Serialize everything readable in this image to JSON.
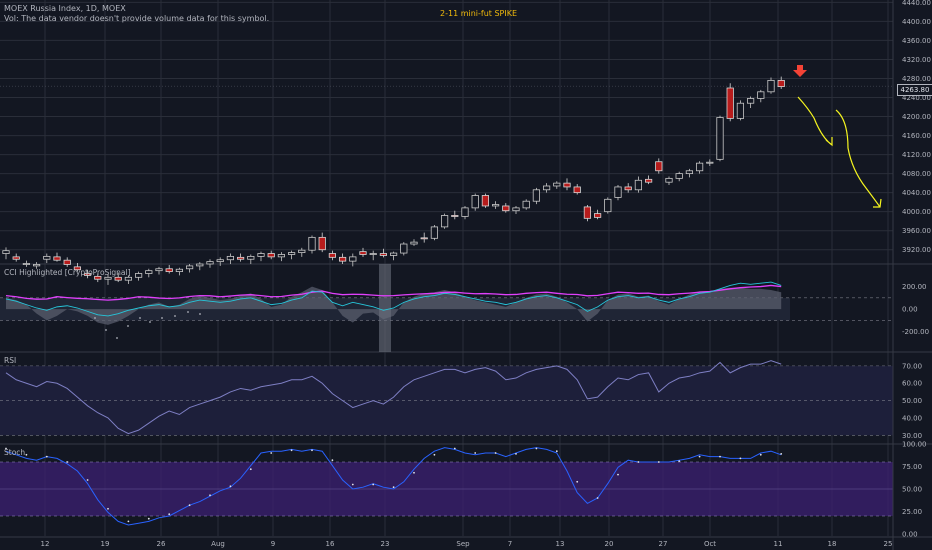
{
  "header": {
    "symbol_line": "MOEX Russia Index, 1D, MOEX",
    "volume_note": "Vol: The data vendor doesn't provide volume data for this symbol.",
    "annotation_title": "2-11 mini-fut SPIKE",
    "last_price": "4263.80"
  },
  "panels": {
    "cci": "CCI Highlighted [CryptoProSignal]",
    "rsi": "RSI",
    "stoch": "Stoch"
  },
  "colors": {
    "background": "#131722",
    "grid": "#2a2e39",
    "candle_up": "#131722",
    "candle_outline": "#c8c8c8",
    "candle_down": "#b71c1c",
    "annotation_arrow": "#f44336",
    "drawing_curve": "#f5f51f",
    "cci_line": "#e040fb",
    "cci_signal": "#26c6da",
    "rsi_line": "#7e7fc4",
    "stoch_k": "#2962ff",
    "stoch_fill": "#3a1f6e"
  },
  "chart_data": [
    {
      "type": "candlestick",
      "title": "MOEX Russia Index, 1D, MOEX",
      "x_ticks": [
        "12",
        "19",
        "26",
        "Aug",
        "9",
        "16",
        "23",
        "Sep",
        "7",
        "13",
        "20",
        "27",
        "Oct",
        "11",
        "18",
        "25"
      ],
      "y_ticks": [
        "3920.00",
        "3960.00",
        "4000.00",
        "4040.00",
        "4080.00",
        "4120.00",
        "4160.00",
        "4200.00",
        "4240.00",
        "4280.00",
        "4320.00",
        "4360.00",
        "4400.00",
        "4440.00"
      ],
      "ylim": [
        3890,
        4445
      ],
      "candles_ohlc": [
        [
          3912,
          3925,
          3900,
          3918
        ],
        [
          3905,
          3912,
          3895,
          3900
        ],
        [
          3890,
          3897,
          3884,
          3891
        ],
        [
          3886,
          3894,
          3880,
          3889
        ],
        [
          3900,
          3912,
          3892,
          3906
        ],
        [
          3905,
          3914,
          3895,
          3898
        ],
        [
          3898,
          3904,
          3884,
          3889
        ],
        [
          3884,
          3892,
          3874,
          3878
        ],
        [
          3870,
          3878,
          3860,
          3866
        ],
        [
          3864,
          3870,
          3852,
          3858
        ],
        [
          3858,
          3868,
          3846,
          3862
        ],
        [
          3862,
          3872,
          3852,
          3856
        ],
        [
          3856,
          3866,
          3848,
          3862
        ],
        [
          3862,
          3874,
          3855,
          3870
        ],
        [
          3870,
          3880,
          3862,
          3876
        ],
        [
          3876,
          3884,
          3868,
          3880
        ],
        [
          3880,
          3888,
          3870,
          3874
        ],
        [
          3874,
          3882,
          3866,
          3879
        ],
        [
          3880,
          3890,
          3872,
          3886
        ],
        [
          3886,
          3894,
          3877,
          3890
        ],
        [
          3890,
          3900,
          3882,
          3895
        ],
        [
          3895,
          3904,
          3886,
          3899
        ],
        [
          3899,
          3912,
          3890,
          3906
        ],
        [
          3904,
          3912,
          3895,
          3900
        ],
        [
          3900,
          3910,
          3890,
          3906
        ],
        [
          3906,
          3916,
          3896,
          3912
        ],
        [
          3912,
          3918,
          3900,
          3905
        ],
        [
          3905,
          3915,
          3896,
          3910
        ],
        [
          3910,
          3918,
          3900,
          3914
        ],
        [
          3914,
          3924,
          3905,
          3919
        ],
        [
          3919,
          3950,
          3912,
          3946
        ],
        [
          3946,
          3956,
          3915,
          3920
        ],
        [
          3912,
          3918,
          3898,
          3904
        ],
        [
          3904,
          3912,
          3890,
          3896
        ],
        [
          3896,
          3912,
          3885,
          3905
        ],
        [
          3916,
          3924,
          3905,
          3910
        ],
        [
          3910,
          3918,
          3898,
          3912
        ],
        [
          3912,
          3922,
          3904,
          3908
        ],
        [
          3908,
          3916,
          3898,
          3913
        ],
        [
          3913,
          3936,
          3908,
          3932
        ],
        [
          3932,
          3942,
          3928,
          3936
        ],
        [
          3945,
          3956,
          3935,
          3944
        ],
        [
          3944,
          3972,
          3940,
          3968
        ],
        [
          3968,
          3996,
          3964,
          3992
        ],
        [
          3992,
          4002,
          3984,
          3990
        ],
        [
          3990,
          4012,
          3984,
          4008
        ],
        [
          4008,
          4038,
          4002,
          4034
        ],
        [
          4034,
          4038,
          4008,
          4012
        ],
        [
          4012,
          4022,
          4006,
          4015
        ],
        [
          4012,
          4018,
          3998,
          4002
        ],
        [
          4002,
          4012,
          3995,
          4008
        ],
        [
          4008,
          4026,
          4004,
          4022
        ],
        [
          4022,
          4050,
          4016,
          4046
        ],
        [
          4046,
          4060,
          4040,
          4054
        ],
        [
          4054,
          4064,
          4048,
          4060
        ],
        [
          4060,
          4070,
          4045,
          4052
        ],
        [
          4052,
          4058,
          4036,
          4040
        ],
        [
          4010,
          4014,
          3980,
          3986
        ],
        [
          3996,
          4004,
          3984,
          3988
        ],
        [
          4000,
          4030,
          3996,
          4026
        ],
        [
          4030,
          4056,
          4024,
          4052
        ],
        [
          4052,
          4060,
          4040,
          4046
        ],
        [
          4046,
          4074,
          4040,
          4066
        ],
        [
          4068,
          4076,
          4058,
          4062
        ],
        [
          4105,
          4112,
          4080,
          4086
        ],
        [
          4062,
          4074,
          4056,
          4070
        ],
        [
          4070,
          4084,
          4064,
          4080
        ],
        [
          4080,
          4090,
          4072,
          4086
        ],
        [
          4086,
          4106,
          4080,
          4102
        ],
        [
          4102,
          4110,
          4096,
          4104
        ],
        [
          4110,
          4202,
          4106,
          4198
        ],
        [
          4260,
          4270,
          4190,
          4196
        ],
        [
          4196,
          4234,
          4192,
          4228
        ],
        [
          4228,
          4242,
          4218,
          4238
        ],
        [
          4238,
          4256,
          4230,
          4252
        ],
        [
          4252,
          4282,
          4248,
          4276
        ],
        [
          4276,
          4284,
          4258,
          4263
        ]
      ],
      "last_price": 4263.8
    },
    {
      "type": "line",
      "title": "CCI Highlighted [CryptoProSignal]",
      "y_ticks": [
        "200.00",
        "0.00",
        "-200.00"
      ],
      "ylim": [
        -380,
        400
      ],
      "reference_levels": [
        100,
        -100
      ],
      "series": [
        {
          "values": [
            120,
            110,
            95,
            88,
            90,
            110,
            102,
            96,
            92,
            85,
            80,
            86,
            95,
            110,
            106,
            98,
            94,
            100,
            112,
            120,
            118,
            110,
            116,
            124,
            128,
            120,
            110,
            112,
            124,
            132,
            150,
            160,
            140,
            128,
            132,
            130,
            124,
            118,
            120,
            126,
            132,
            136,
            140,
            148,
            150,
            142,
            136,
            138,
            134,
            128,
            130,
            140,
            146,
            150,
            140,
            132,
            130,
            118,
            122,
            136,
            150,
            146,
            140,
            142,
            130,
            128,
            136,
            142,
            150,
            156,
            168,
            180,
            190,
            196,
            200,
            210,
            200
          ]
        },
        {
          "values": [
            90,
            70,
            40,
            10,
            -10,
            20,
            30,
            10,
            -20,
            -50,
            -60,
            -40,
            -10,
            10,
            30,
            40,
            20,
            30,
            60,
            80,
            70,
            60,
            70,
            90,
            100,
            70,
            40,
            50,
            80,
            100,
            160,
            150,
            60,
            30,
            60,
            40,
            20,
            -10,
            10,
            60,
            90,
            110,
            120,
            140,
            130,
            110,
            90,
            70,
            60,
            40,
            60,
            90,
            110,
            120,
            100,
            70,
            40,
            -20,
            20,
            80,
            110,
            120,
            100,
            110,
            80,
            60,
            90,
            110,
            140,
            150,
            180,
            210,
            230,
            220,
            230,
            240,
            210
          ]
        }
      ],
      "histogram": [
        100,
        80,
        40,
        -40,
        -100,
        -60,
        0,
        -20,
        -60,
        -120,
        -140,
        -110,
        -60,
        0,
        40,
        60,
        20,
        40,
        90,
        120,
        100,
        80,
        90,
        120,
        140,
        90,
        20,
        40,
        110,
        150,
        200,
        170,
        60,
        -60,
        -120,
        -40,
        -30,
        -90,
        -60,
        60,
        110,
        140,
        150,
        170,
        150,
        110,
        80,
        60,
        40,
        20,
        60,
        100,
        130,
        140,
        110,
        60,
        0,
        -110,
        -40,
        80,
        130,
        140,
        110,
        120,
        70,
        40,
        90,
        130,
        160,
        160,
        180,
        190,
        190,
        180,
        180,
        170,
        150
      ]
    },
    {
      "type": "line",
      "title": "RSI",
      "y_ticks": [
        "70.00",
        "60.00",
        "50.00",
        "40.00",
        "30.00"
      ],
      "ylim": [
        25,
        78
      ],
      "reference_levels": [
        70,
        50,
        30
      ],
      "values": [
        66,
        62,
        60,
        58,
        61,
        60,
        57,
        52,
        47,
        43,
        40,
        34,
        31,
        33,
        37,
        41,
        44,
        42,
        46,
        48,
        50,
        52,
        55,
        57,
        56,
        58,
        59,
        60,
        62,
        62,
        64,
        60,
        54,
        50,
        46,
        48,
        50,
        48,
        52,
        58,
        62,
        64,
        66,
        68,
        68,
        66,
        68,
        69,
        67,
        62,
        63,
        66,
        68,
        69,
        70,
        68,
        62,
        51,
        52,
        58,
        63,
        62,
        65,
        66,
        55,
        60,
        63,
        64,
        66,
        67,
        72,
        66,
        69,
        71,
        71,
        73,
        71
      ]
    },
    {
      "type": "line",
      "title": "Stoch",
      "y_ticks": [
        "100.00",
        "75.00",
        "50.00",
        "25.00",
        "0.00"
      ],
      "ylim": [
        0,
        100
      ],
      "reference_levels": [
        80,
        20
      ],
      "series": [
        {
          "values": [
            92,
            88,
            84,
            82,
            86,
            84,
            78,
            70,
            56,
            38,
            24,
            14,
            10,
            12,
            14,
            18,
            20,
            26,
            32,
            36,
            42,
            48,
            52,
            62,
            76,
            90,
            92,
            92,
            94,
            92,
            94,
            92,
            76,
            60,
            50,
            52,
            56,
            52,
            50,
            58,
            72,
            84,
            92,
            96,
            94,
            90,
            88,
            90,
            90,
            86,
            90,
            94,
            96,
            94,
            90,
            70,
            46,
            34,
            40,
            56,
            74,
            82,
            80,
            80,
            80,
            80,
            82,
            84,
            88,
            86,
            86,
            84,
            84,
            84,
            90,
            92,
            88
          ]
        },
        {
          "values": [
            95,
            92,
            88,
            85,
            86,
            85,
            80,
            72,
            60,
            42,
            28,
            18,
            14,
            15,
            17,
            20,
            22,
            27,
            32,
            37,
            43,
            48,
            53,
            60,
            72,
            84,
            90,
            92,
            93,
            93,
            93,
            92,
            82,
            66,
            55,
            54,
            55,
            53,
            52,
            57,
            68,
            80,
            88,
            94,
            95,
            92,
            90,
            90,
            90,
            88,
            89,
            92,
            95,
            95,
            92,
            78,
            58,
            42,
            40,
            50,
            66,
            78,
            80,
            81,
            80,
            80,
            81,
            82,
            86,
            86,
            86,
            85,
            84,
            84,
            88,
            90,
            89
          ]
        }
      ]
    }
  ]
}
